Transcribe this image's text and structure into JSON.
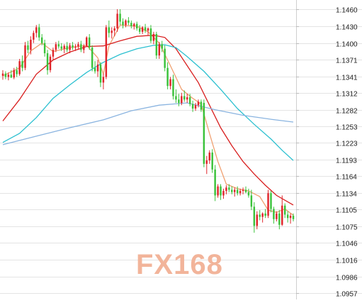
{
  "chart_data": {
    "type": "candlestick",
    "y_axis": {
      "position": "right",
      "ticks": [
        "1.1460",
        "1.1430",
        "1.1400",
        "1.1371",
        "1.1341",
        "1.1312",
        "1.1282",
        "1.1253",
        "1.1223",
        "1.1193",
        "1.1164",
        "1.1134",
        "1.1105",
        "1.1075",
        "1.1046",
        "1.1016",
        "1.0986",
        "1.0957"
      ],
      "ylim": [
        1.0957,
        1.146
      ]
    },
    "grid": true,
    "colors": {
      "up": "#e0242a",
      "down": "#3ac23a",
      "ma_fast": "#f0a070",
      "ma_mid": "#d81e1e",
      "ma_slow": "#2cc0d0",
      "ma_long": "#8ab4e0",
      "grid": "#e4e4e4",
      "watermark": "#f2b49a"
    },
    "candles": [
      {
        "o": 1.1342,
        "h": 1.1352,
        "l": 1.1335,
        "c": 1.1346
      },
      {
        "o": 1.1346,
        "h": 1.135,
        "l": 1.1336,
        "c": 1.134
      },
      {
        "o": 1.134,
        "h": 1.1348,
        "l": 1.1334,
        "c": 1.1344
      },
      {
        "o": 1.1344,
        "h": 1.1352,
        "l": 1.1338,
        "c": 1.1339
      },
      {
        "o": 1.1339,
        "h": 1.1356,
        "l": 1.1336,
        "c": 1.1352
      },
      {
        "o": 1.1352,
        "h": 1.1358,
        "l": 1.134,
        "c": 1.1345
      },
      {
        "o": 1.1345,
        "h": 1.1372,
        "l": 1.1342,
        "c": 1.1368
      },
      {
        "o": 1.1368,
        "h": 1.1378,
        "l": 1.135,
        "c": 1.1356
      },
      {
        "o": 1.1356,
        "h": 1.1402,
        "l": 1.1352,
        "c": 1.1396
      },
      {
        "o": 1.1396,
        "h": 1.1404,
        "l": 1.1382,
        "c": 1.1388
      },
      {
        "o": 1.1388,
        "h": 1.1412,
        "l": 1.138,
        "c": 1.1406
      },
      {
        "o": 1.1406,
        "h": 1.1422,
        "l": 1.14,
        "c": 1.1418
      },
      {
        "o": 1.1418,
        "h": 1.1432,
        "l": 1.141,
        "c": 1.1428
      },
      {
        "o": 1.1428,
        "h": 1.1434,
        "l": 1.1404,
        "c": 1.141
      },
      {
        "o": 1.141,
        "h": 1.1416,
        "l": 1.1396,
        "c": 1.14
      },
      {
        "o": 1.14,
        "h": 1.1406,
        "l": 1.1376,
        "c": 1.1382
      },
      {
        "o": 1.1382,
        "h": 1.1388,
        "l": 1.1344,
        "c": 1.1352
      },
      {
        "o": 1.1352,
        "h": 1.138,
        "l": 1.1348,
        "c": 1.1376
      },
      {
        "o": 1.1376,
        "h": 1.1392,
        "l": 1.137,
        "c": 1.1388
      },
      {
        "o": 1.1388,
        "h": 1.1402,
        "l": 1.1384,
        "c": 1.1398
      },
      {
        "o": 1.1398,
        "h": 1.1404,
        "l": 1.139,
        "c": 1.1394
      },
      {
        "o": 1.1394,
        "h": 1.14,
        "l": 1.1386,
        "c": 1.139
      },
      {
        "o": 1.139,
        "h": 1.1398,
        "l": 1.1382,
        "c": 1.1395
      },
      {
        "o": 1.1395,
        "h": 1.1402,
        "l": 1.1384,
        "c": 1.1388
      },
      {
        "o": 1.1388,
        "h": 1.14,
        "l": 1.1382,
        "c": 1.1396
      },
      {
        "o": 1.1396,
        "h": 1.1402,
        "l": 1.1388,
        "c": 1.1392
      },
      {
        "o": 1.1392,
        "h": 1.1398,
        "l": 1.1386,
        "c": 1.1394
      },
      {
        "o": 1.1394,
        "h": 1.1402,
        "l": 1.139,
        "c": 1.1398
      },
      {
        "o": 1.1398,
        "h": 1.1404,
        "l": 1.1384,
        "c": 1.1388
      },
      {
        "o": 1.1388,
        "h": 1.1398,
        "l": 1.1382,
        "c": 1.1395
      },
      {
        "o": 1.1395,
        "h": 1.1412,
        "l": 1.1393,
        "c": 1.141
      },
      {
        "o": 1.141,
        "h": 1.1416,
        "l": 1.1388,
        "c": 1.1392
      },
      {
        "o": 1.1392,
        "h": 1.1396,
        "l": 1.135,
        "c": 1.1356
      },
      {
        "o": 1.1356,
        "h": 1.1368,
        "l": 1.1346,
        "c": 1.135
      },
      {
        "o": 1.135,
        "h": 1.137,
        "l": 1.134,
        "c": 1.1362
      },
      {
        "o": 1.1362,
        "h": 1.1366,
        "l": 1.1322,
        "c": 1.133
      },
      {
        "o": 1.133,
        "h": 1.1346,
        "l": 1.1318,
        "c": 1.134
      },
      {
        "o": 1.134,
        "h": 1.1432,
        "l": 1.1336,
        "c": 1.1428
      },
      {
        "o": 1.1428,
        "h": 1.144,
        "l": 1.141,
        "c": 1.1418
      },
      {
        "o": 1.1418,
        "h": 1.1428,
        "l": 1.1408,
        "c": 1.1422
      },
      {
        "o": 1.1422,
        "h": 1.143,
        "l": 1.1412,
        "c": 1.1426
      },
      {
        "o": 1.1426,
        "h": 1.146,
        "l": 1.142,
        "c": 1.1452
      },
      {
        "o": 1.1452,
        "h": 1.146,
        "l": 1.1432,
        "c": 1.1438
      },
      {
        "o": 1.1438,
        "h": 1.1444,
        "l": 1.1426,
        "c": 1.1432
      },
      {
        "o": 1.1432,
        "h": 1.1442,
        "l": 1.1428,
        "c": 1.144
      },
      {
        "o": 1.144,
        "h": 1.1446,
        "l": 1.1432,
        "c": 1.1436
      },
      {
        "o": 1.1436,
        "h": 1.144,
        "l": 1.1426,
        "c": 1.143
      },
      {
        "o": 1.143,
        "h": 1.1436,
        "l": 1.1424,
        "c": 1.1434
      },
      {
        "o": 1.1434,
        "h": 1.1438,
        "l": 1.1422,
        "c": 1.1426
      },
      {
        "o": 1.1426,
        "h": 1.1432,
        "l": 1.1416,
        "c": 1.142
      },
      {
        "o": 1.142,
        "h": 1.143,
        "l": 1.1416,
        "c": 1.1428
      },
      {
        "o": 1.1428,
        "h": 1.1434,
        "l": 1.1418,
        "c": 1.1422
      },
      {
        "o": 1.1422,
        "h": 1.1428,
        "l": 1.1414,
        "c": 1.1426
      },
      {
        "o": 1.1426,
        "h": 1.1432,
        "l": 1.14,
        "c": 1.1404
      },
      {
        "o": 1.1404,
        "h": 1.142,
        "l": 1.1398,
        "c": 1.1416
      },
      {
        "o": 1.1416,
        "h": 1.142,
        "l": 1.1372,
        "c": 1.1378
      },
      {
        "o": 1.1378,
        "h": 1.1402,
        "l": 1.1372,
        "c": 1.1398
      },
      {
        "o": 1.1398,
        "h": 1.1404,
        "l": 1.1384,
        "c": 1.139
      },
      {
        "o": 1.139,
        "h": 1.1396,
        "l": 1.135,
        "c": 1.1356
      },
      {
        "o": 1.1356,
        "h": 1.1366,
        "l": 1.1318,
        "c": 1.1324
      },
      {
        "o": 1.1324,
        "h": 1.134,
        "l": 1.1318,
        "c": 1.1336
      },
      {
        "o": 1.1336,
        "h": 1.1344,
        "l": 1.13,
        "c": 1.1306
      },
      {
        "o": 1.1306,
        "h": 1.1318,
        "l": 1.1294,
        "c": 1.13
      },
      {
        "o": 1.13,
        "h": 1.131,
        "l": 1.1288,
        "c": 1.1294
      },
      {
        "o": 1.1294,
        "h": 1.1312,
        "l": 1.129,
        "c": 1.1306
      },
      {
        "o": 1.1306,
        "h": 1.1316,
        "l": 1.1296,
        "c": 1.13
      },
      {
        "o": 1.13,
        "h": 1.131,
        "l": 1.1294,
        "c": 1.1304
      },
      {
        "o": 1.1304,
        "h": 1.131,
        "l": 1.1288,
        "c": 1.1292
      },
      {
        "o": 1.1292,
        "h": 1.1298,
        "l": 1.1278,
        "c": 1.1284
      },
      {
        "o": 1.1284,
        "h": 1.1294,
        "l": 1.128,
        "c": 1.129
      },
      {
        "o": 1.129,
        "h": 1.13,
        "l": 1.1286,
        "c": 1.1296
      },
      {
        "o": 1.1296,
        "h": 1.13,
        "l": 1.1278,
        "c": 1.1282
      },
      {
        "o": 1.1294,
        "h": 1.13,
        "l": 1.118,
        "c": 1.1186
      },
      {
        "o": 1.1186,
        "h": 1.12,
        "l": 1.1168,
        "c": 1.1192
      },
      {
        "o": 1.1192,
        "h": 1.121,
        "l": 1.1186,
        "c": 1.1206
      },
      {
        "o": 1.1206,
        "h": 1.1212,
        "l": 1.117,
        "c": 1.1176
      },
      {
        "o": 1.1176,
        "h": 1.1184,
        "l": 1.112,
        "c": 1.113
      },
      {
        "o": 1.113,
        "h": 1.115,
        "l": 1.1126,
        "c": 1.1146
      },
      {
        "o": 1.1146,
        "h": 1.115,
        "l": 1.1122,
        "c": 1.113
      },
      {
        "o": 1.113,
        "h": 1.1142,
        "l": 1.1124,
        "c": 1.1138
      },
      {
        "o": 1.1138,
        "h": 1.1148,
        "l": 1.1132,
        "c": 1.1144
      },
      {
        "o": 1.1144,
        "h": 1.115,
        "l": 1.1136,
        "c": 1.114
      },
      {
        "o": 1.114,
        "h": 1.1146,
        "l": 1.1132,
        "c": 1.1136
      },
      {
        "o": 1.1136,
        "h": 1.1144,
        "l": 1.1128,
        "c": 1.114
      },
      {
        "o": 1.114,
        "h": 1.1146,
        "l": 1.113,
        "c": 1.1134
      },
      {
        "o": 1.1134,
        "h": 1.1142,
        "l": 1.113,
        "c": 1.1138
      },
      {
        "o": 1.1138,
        "h": 1.1144,
        "l": 1.1132,
        "c": 1.114
      },
      {
        "o": 1.114,
        "h": 1.1146,
        "l": 1.1134,
        "c": 1.1136
      },
      {
        "o": 1.1136,
        "h": 1.1142,
        "l": 1.1126,
        "c": 1.113
      },
      {
        "o": 1.113,
        "h": 1.114,
        "l": 1.1104,
        "c": 1.111
      },
      {
        "o": 1.111,
        "h": 1.1118,
        "l": 1.1064,
        "c": 1.1076
      },
      {
        "o": 1.1076,
        "h": 1.1102,
        "l": 1.107,
        "c": 1.1096
      },
      {
        "o": 1.1096,
        "h": 1.1104,
        "l": 1.1086,
        "c": 1.1092
      },
      {
        "o": 1.1092,
        "h": 1.11,
        "l": 1.1082,
        "c": 1.1098
      },
      {
        "o": 1.1098,
        "h": 1.1106,
        "l": 1.109,
        "c": 1.1094
      },
      {
        "o": 1.1094,
        "h": 1.114,
        "l": 1.109,
        "c": 1.1134
      },
      {
        "o": 1.1134,
        "h": 1.1138,
        "l": 1.11,
        "c": 1.1106
      },
      {
        "o": 1.1106,
        "h": 1.111,
        "l": 1.108,
        "c": 1.1088
      },
      {
        "o": 1.1088,
        "h": 1.1102,
        "l": 1.1084,
        "c": 1.1098
      },
      {
        "o": 1.1098,
        "h": 1.1104,
        "l": 1.107,
        "c": 1.1078
      },
      {
        "o": 1.1078,
        "h": 1.113,
        "l": 1.1076,
        "c": 1.1112
      },
      {
        "o": 1.1112,
        "h": 1.1116,
        "l": 1.109,
        "c": 1.1096
      },
      {
        "o": 1.1096,
        "h": 1.1102,
        "l": 1.1082,
        "c": 1.109
      },
      {
        "o": 1.109,
        "h": 1.1098,
        "l": 1.108,
        "c": 1.1094
      },
      {
        "o": 1.1094,
        "h": 1.1098,
        "l": 1.1084,
        "c": 1.1088
      }
    ],
    "ma_lines": [
      {
        "name": "ma-fast",
        "points": [
          [
            0,
            1.1342
          ],
          [
            6,
            1.1356
          ],
          [
            10,
            1.1386
          ],
          [
            14,
            1.14
          ],
          [
            18,
            1.1385
          ],
          [
            24,
            1.1392
          ],
          [
            30,
            1.1396
          ],
          [
            34,
            1.1374
          ],
          [
            36,
            1.1345
          ],
          [
            38,
            1.1395
          ],
          [
            42,
            1.1432
          ],
          [
            48,
            1.143
          ],
          [
            52,
            1.142
          ],
          [
            56,
            1.14
          ],
          [
            60,
            1.136
          ],
          [
            64,
            1.1318
          ],
          [
            68,
            1.1302
          ],
          [
            71,
            1.1292
          ],
          [
            74,
            1.124
          ],
          [
            77,
            1.119
          ],
          [
            80,
            1.115
          ],
          [
            84,
            1.1142
          ],
          [
            88,
            1.1138
          ],
          [
            92,
            1.1128
          ],
          [
            95,
            1.1104
          ],
          [
            98,
            1.11
          ],
          [
            101,
            1.1106
          ],
          [
            104,
            1.1095
          ]
        ]
      },
      {
        "name": "ma-mid",
        "points": [
          [
            0,
            1.1262
          ],
          [
            6,
            1.13
          ],
          [
            12,
            1.1345
          ],
          [
            18,
            1.137
          ],
          [
            24,
            1.1384
          ],
          [
            30,
            1.1394
          ],
          [
            36,
            1.1395
          ],
          [
            42,
            1.1404
          ],
          [
            48,
            1.1412
          ],
          [
            54,
            1.1414
          ],
          [
            58,
            1.141
          ],
          [
            62,
            1.139
          ],
          [
            66,
            1.136
          ],
          [
            70,
            1.133
          ],
          [
            74,
            1.129
          ],
          [
            78,
            1.125
          ],
          [
            82,
            1.1218
          ],
          [
            86,
            1.119
          ],
          [
            90,
            1.1168
          ],
          [
            94,
            1.1148
          ],
          [
            98,
            1.113
          ],
          [
            104,
            1.1113
          ]
        ]
      },
      {
        "name": "ma-slow",
        "points": [
          [
            0,
            1.1224
          ],
          [
            6,
            1.124
          ],
          [
            12,
            1.1268
          ],
          [
            18,
            1.1302
          ],
          [
            24,
            1.1326
          ],
          [
            30,
            1.1348
          ],
          [
            36,
            1.1366
          ],
          [
            42,
            1.138
          ],
          [
            48,
            1.139
          ],
          [
            54,
            1.1396
          ],
          [
            58,
            1.1397
          ],
          [
            62,
            1.1392
          ],
          [
            66,
            1.1376
          ],
          [
            72,
            1.135
          ],
          [
            78,
            1.1318
          ],
          [
            84,
            1.1284
          ],
          [
            90,
            1.1256
          ],
          [
            96,
            1.123
          ],
          [
            100,
            1.121
          ],
          [
            104,
            1.1192
          ]
        ]
      },
      {
        "name": "ma-long",
        "points": [
          [
            0,
            1.122
          ],
          [
            12,
            1.1235
          ],
          [
            24,
            1.125
          ],
          [
            36,
            1.1264
          ],
          [
            46,
            1.128
          ],
          [
            56,
            1.129
          ],
          [
            66,
            1.1294
          ],
          [
            76,
            1.1282
          ],
          [
            86,
            1.1272
          ],
          [
            96,
            1.1265
          ],
          [
            104,
            1.126
          ]
        ]
      }
    ]
  },
  "watermark": {
    "text": "FX168"
  }
}
